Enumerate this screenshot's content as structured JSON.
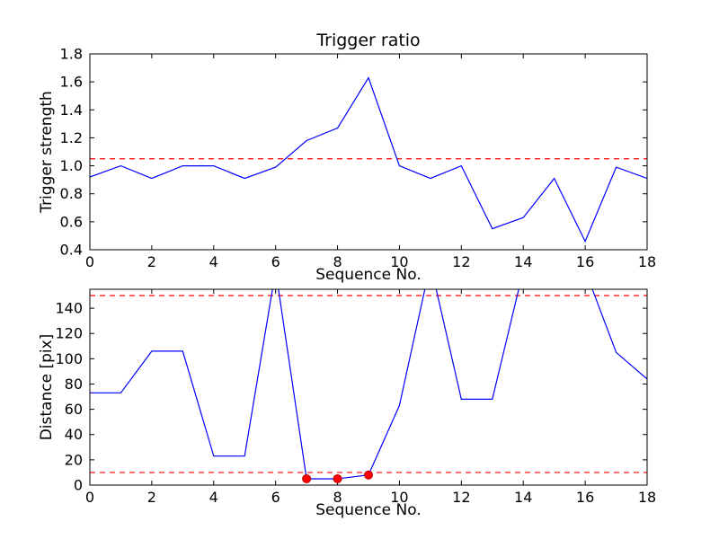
{
  "figure": {
    "title": "Trigger ratio",
    "background": "#ffffff",
    "line_color": "#0000ff",
    "threshold_color": "#ff0000",
    "marker_color": "#ff0000"
  },
  "chart_data": [
    {
      "type": "line",
      "title": "Trigger ratio",
      "xlabel": "Sequence No.",
      "ylabel": "Trigger strength",
      "xlim": [
        0,
        18
      ],
      "ylim": [
        0.4,
        1.8
      ],
      "xticks": [
        0,
        2,
        4,
        6,
        8,
        10,
        12,
        14,
        16,
        18
      ],
      "xtick_labels": [
        "0",
        "2",
        "4",
        "6",
        "8",
        "10",
        "12",
        "14",
        "16",
        "18"
      ],
      "yticks": [
        0.4,
        0.6,
        0.8,
        1.0,
        1.2,
        1.4,
        1.6,
        1.8
      ],
      "ytick_labels": [
        "0.4",
        "0.6",
        "0.8",
        "1.0",
        "1.2",
        "1.4",
        "1.6",
        "1.8"
      ],
      "x": [
        0,
        1,
        2,
        3,
        4,
        5,
        6,
        7,
        8,
        9,
        10,
        11,
        12,
        13,
        14,
        15,
        16,
        17,
        18
      ],
      "series": [
        {
          "name": "trigger-strength",
          "color": "#0000ff",
          "values": [
            0.92,
            1.0,
            0.91,
            1.0,
            1.0,
            0.91,
            0.99,
            1.18,
            1.27,
            1.63,
            1.0,
            0.91,
            1.0,
            0.55,
            0.63,
            0.91,
            0.46,
            0.99,
            0.91
          ]
        }
      ],
      "thresholds": [
        {
          "value": 1.05,
          "color": "#ff0000",
          "style": "dashed"
        }
      ],
      "markers": [],
      "legend": "off",
      "grid": "off"
    },
    {
      "type": "line",
      "title": "",
      "xlabel": "Sequence No.",
      "ylabel": "Distance [pix]",
      "xlim": [
        0,
        18
      ],
      "ylim": [
        0,
        155
      ],
      "xticks": [
        0,
        2,
        4,
        6,
        8,
        10,
        12,
        14,
        16,
        18
      ],
      "xtick_labels": [
        "0",
        "2",
        "4",
        "6",
        "8",
        "10",
        "12",
        "14",
        "16",
        "18"
      ],
      "yticks": [
        0,
        20,
        40,
        60,
        80,
        100,
        120,
        140
      ],
      "ytick_labels": [
        "0",
        "20",
        "40",
        "60",
        "80",
        "100",
        "120",
        "140"
      ],
      "x": [
        0,
        1,
        2,
        3,
        4,
        5,
        6,
        7,
        8,
        9,
        10,
        11,
        12,
        13,
        14,
        15,
        16,
        17,
        18
      ],
      "series": [
        {
          "name": "distance",
          "color": "#0000ff",
          "values": [
            73,
            73,
            106,
            106,
            23,
            23,
            170,
            5,
            5,
            8,
            63,
            175,
            68,
            68,
            170,
            172,
            170,
            105,
            84
          ]
        }
      ],
      "thresholds": [
        {
          "value": 150,
          "color": "#ff0000",
          "style": "dashed"
        },
        {
          "value": 10,
          "color": "#ff0000",
          "style": "dashed"
        }
      ],
      "markers": [
        {
          "x": 7,
          "y": 5
        },
        {
          "x": 8,
          "y": 5
        },
        {
          "x": 9,
          "y": 8
        }
      ],
      "legend": "off",
      "grid": "off"
    }
  ]
}
